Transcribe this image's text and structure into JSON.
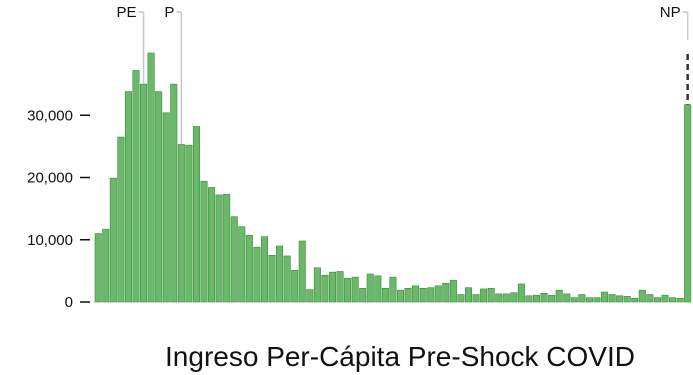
{
  "chart_data": {
    "type": "bar",
    "xlabel": "Ingreso Per-Cápita Pre-Shock COVID",
    "ylabel": "",
    "ylim": [
      0,
      40000
    ],
    "yticks": [
      0,
      10000,
      20000,
      30000
    ],
    "ytick_labels": [
      "0",
      "10,000",
      "20,000",
      "30,000"
    ],
    "grid": false,
    "bar_color": "#6ab86a",
    "bar_edge_color": "#3b8a3b",
    "marker_line_color": "#c8c8c8",
    "np_line_color": "#333333",
    "values": [
      11000,
      11700,
      19900,
      26500,
      33800,
      37200,
      35000,
      40000,
      33800,
      30400,
      35000,
      25300,
      25200,
      28200,
      19400,
      18400,
      17200,
      17300,
      13700,
      12100,
      10700,
      8800,
      10500,
      7500,
      9000,
      7400,
      5100,
      9800,
      2000,
      5500,
      4300,
      4800,
      4900,
      3800,
      4000,
      2200,
      4500,
      4200,
      2200,
      4000,
      1900,
      2200,
      2600,
      2200,
      2300,
      2600,
      3000,
      3500,
      1200,
      2300,
      1200,
      2100,
      2200,
      1300,
      1300,
      1500,
      2900,
      1000,
      1100,
      1400,
      1100,
      1900,
      1300,
      700,
      1200,
      700,
      700,
      1600,
      1200,
      1000,
      900,
      600,
      1900,
      1200,
      700,
      1100,
      700,
      600,
      31700
    ],
    "markers": [
      {
        "label": "PE",
        "bar_index": 6
      },
      {
        "label": "P",
        "bar_index": 11
      },
      {
        "label": "NP",
        "bar_index": 78
      }
    ]
  }
}
